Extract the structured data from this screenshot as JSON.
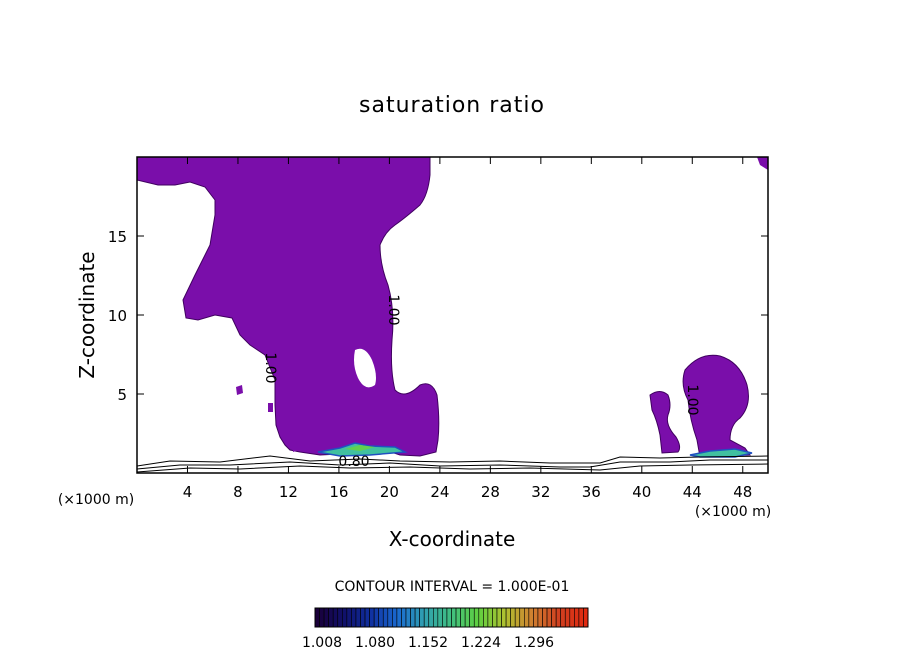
{
  "chart_data": {
    "type": "contour",
    "title": "saturation ratio",
    "xlabel": "X-coordinate",
    "ylabel": "Z-coordinate",
    "x_unit_left": "(×1000 m)",
    "x_unit_right": "(×1000 m)",
    "xlim": [
      0,
      50
    ],
    "ylim": [
      0,
      20
    ],
    "xticks": [
      4,
      8,
      12,
      16,
      20,
      24,
      28,
      32,
      36,
      40,
      44,
      48
    ],
    "yticks": [
      5,
      10,
      15
    ],
    "fill_color": "#7a0eaa",
    "contour_labels": [
      {
        "text": "1.00",
        "x": 9.6,
        "z": 6.5,
        "rotation": 90
      },
      {
        "text": "1.00",
        "x": 19.2,
        "z": 10.5,
        "rotation": 90
      },
      {
        "text": "1.00",
        "x": 43.3,
        "z": 4.6,
        "rotation": 90
      },
      {
        "text": "0.80",
        "x": 17.0,
        "z": 0.8,
        "rotation": 0
      }
    ],
    "contour_interval_text": "CONTOUR INTERVAL = 1.000E-01",
    "colorbar": {
      "tick_labels": [
        "1.008",
        "1.080",
        "1.152",
        "1.224",
        "1.296"
      ],
      "colors": [
        "#1a003a",
        "#10106a",
        "#1030a0",
        "#1a6ad0",
        "#30a0b0",
        "#40c080",
        "#60d040",
        "#b0c030",
        "#d08030",
        "#d04020",
        "#e02a10"
      ]
    }
  }
}
